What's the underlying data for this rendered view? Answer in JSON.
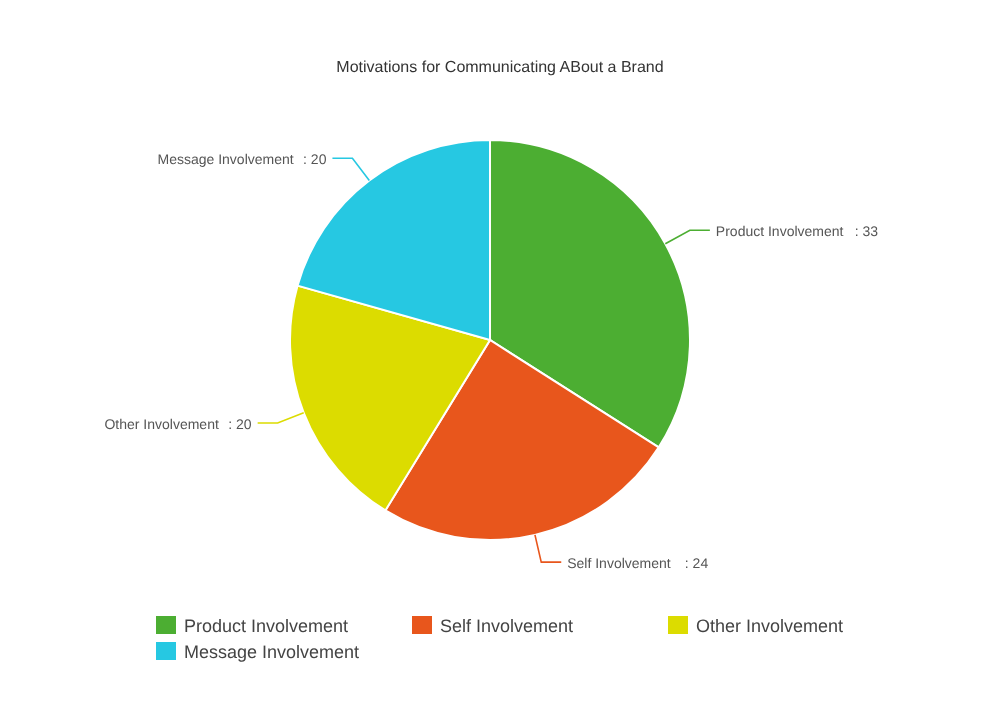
{
  "chart_data": {
    "type": "pie",
    "title": "Motivations for Communicating ABout a Brand",
    "categories": [
      "Product Involvement",
      "Self Involvement",
      "Other Involvement",
      "Message Involvement"
    ],
    "values": [
      33,
      24,
      20,
      20
    ],
    "colors": [
      "#4cae32",
      "#e8561c",
      "#dcdc00",
      "#26c8e2"
    ],
    "value_labels": [
      ": 33",
      ": 24",
      ": 20",
      ": 20"
    ],
    "legend": "bottom"
  }
}
